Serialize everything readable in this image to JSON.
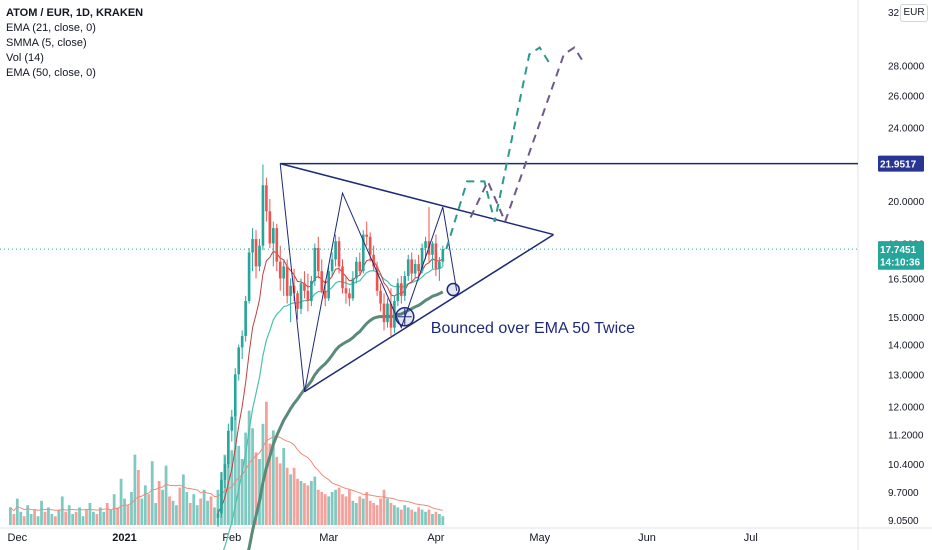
{
  "legend": {
    "title": "ATOM / EUR, 1D, KRAKEN",
    "lines": [
      "EMA (21, close, 0)",
      "SMMA (5, close)",
      "Vol (14)",
      "EMA (50, close, 0)"
    ]
  },
  "currency_badge": "EUR",
  "colors": {
    "up": "#26a69a",
    "down": "#ef5350",
    "vol_up": "#7fc9c0",
    "vol_down": "#f4a09b",
    "ema21": "#4fbfae",
    "smma5": "#c04040",
    "ema50": "#5a8a78",
    "vol_ma": "#f08c7a",
    "drawing": "#1e2a78",
    "projection_teal": "#2b9a8c",
    "projection_purple": "#6c5a8a",
    "price_tag": "#283593"
  },
  "annotation": "Bounced over EMA 50 Twice",
  "chart_data": {
    "type": "candlestick",
    "symbol": "ATOM / EUR",
    "interval": "1D",
    "exchange": "KRAKEN",
    "y_scale": "log",
    "y_ticks": [
      "9.0500",
      "9.7000",
      "10.4000",
      "11.2000",
      "12.0000",
      "13.0000",
      "14.0000",
      "15.0000",
      "16.5000",
      "18.0000",
      "20.0000",
      "22.0000",
      "24.0000",
      "26.0000",
      "28.0000",
      "32.0000"
    ],
    "x_labels": [
      {
        "date": "2020-12-01",
        "label": "Dec"
      },
      {
        "date": "2021-01-01",
        "label": "2021"
      },
      {
        "date": "2021-02-01",
        "label": "Feb"
      },
      {
        "date": "2021-03-01",
        "label": "Mar"
      },
      {
        "date": "2021-04-01",
        "label": "Apr"
      },
      {
        "date": "2021-05-01",
        "label": "May"
      },
      {
        "date": "2021-06-01",
        "label": "Jun"
      },
      {
        "date": "2021-07-01",
        "label": "Jul"
      }
    ],
    "x_range": [
      "2020-11-26",
      "2021-08-01"
    ],
    "price_tags": [
      {
        "label": "21.9517",
        "value": 21.9517,
        "kind": "line"
      },
      {
        "label": "17.7451",
        "value": 17.7451,
        "kind": "last"
      },
      {
        "label": "14:10:36",
        "value": 17.2,
        "kind": "countdown"
      }
    ],
    "current_price": 17.7451,
    "candles_start": "2021-01-28",
    "candles": [
      [
        9.1,
        9.3,
        8.9,
        9.2
      ],
      [
        9.2,
        10.2,
        9.1,
        10.0
      ],
      [
        10.0,
        10.6,
        9.8,
        10.4
      ],
      [
        10.4,
        11.5,
        10.3,
        11.3
      ],
      [
        11.3,
        11.9,
        11.0,
        11.7
      ],
      [
        11.7,
        13.2,
        11.6,
        13.0
      ],
      [
        13.0,
        14.0,
        12.8,
        13.9
      ],
      [
        13.9,
        14.5,
        13.5,
        14.3
      ],
      [
        14.3,
        15.8,
        14.1,
        15.6
      ],
      [
        15.6,
        17.8,
        15.5,
        17.6
      ],
      [
        17.6,
        18.7,
        16.8,
        18.2
      ],
      [
        18.2,
        18.6,
        16.5,
        17.0
      ],
      [
        17.0,
        18.2,
        16.8,
        17.9
      ],
      [
        17.9,
        21.9,
        17.7,
        20.8
      ],
      [
        20.8,
        21.2,
        19.0,
        19.5
      ],
      [
        19.5,
        20.1,
        17.8,
        18.0
      ],
      [
        18.0,
        19.0,
        17.0,
        18.7
      ],
      [
        18.7,
        18.9,
        16.8,
        17.2
      ],
      [
        17.2,
        17.9,
        16.0,
        16.5
      ],
      [
        16.5,
        17.3,
        15.8,
        17.0
      ],
      [
        17.0,
        17.3,
        15.5,
        15.8
      ],
      [
        15.8,
        16.5,
        14.8,
        16.2
      ],
      [
        16.2,
        16.9,
        15.6,
        15.9
      ],
      [
        15.9,
        16.0,
        14.9,
        15.3
      ],
      [
        15.3,
        16.5,
        15.1,
        16.3
      ],
      [
        16.3,
        16.8,
        15.7,
        16.0
      ],
      [
        16.0,
        16.7,
        15.2,
        15.6
      ],
      [
        15.6,
        16.6,
        15.4,
        16.4
      ],
      [
        16.4,
        18.0,
        16.2,
        17.8
      ],
      [
        17.8,
        18.3,
        16.5,
        16.8
      ],
      [
        16.8,
        17.3,
        15.9,
        16.0
      ],
      [
        16.0,
        16.4,
        15.4,
        15.7
      ],
      [
        15.7,
        17.0,
        15.6,
        16.8
      ],
      [
        16.8,
        17.6,
        16.6,
        17.3
      ],
      [
        17.3,
        18.4,
        17.0,
        18.1
      ],
      [
        18.1,
        18.3,
        16.7,
        17.0
      ],
      [
        17.0,
        17.3,
        15.9,
        16.1
      ],
      [
        16.1,
        16.6,
        15.5,
        15.9
      ],
      [
        15.9,
        16.1,
        15.4,
        15.7
      ],
      [
        15.7,
        16.8,
        15.6,
        16.5
      ],
      [
        16.5,
        17.4,
        16.3,
        17.2
      ],
      [
        17.2,
        17.6,
        16.6,
        16.8
      ],
      [
        16.8,
        18.6,
        16.7,
        18.4
      ],
      [
        18.4,
        19.0,
        17.9,
        18.3
      ],
      [
        18.3,
        18.5,
        17.2,
        17.5
      ],
      [
        17.5,
        17.9,
        16.8,
        17.0
      ],
      [
        17.0,
        17.2,
        15.8,
        16.0
      ],
      [
        16.0,
        16.3,
        15.2,
        15.5
      ],
      [
        15.5,
        15.9,
        14.5,
        14.8
      ],
      [
        14.8,
        15.7,
        14.6,
        15.5
      ],
      [
        15.5,
        16.1,
        14.3,
        14.6
      ],
      [
        14.6,
        15.8,
        14.4,
        15.6
      ],
      [
        15.6,
        16.5,
        15.4,
        16.3
      ],
      [
        16.3,
        16.6,
        15.5,
        15.8
      ],
      [
        15.8,
        16.8,
        15.6,
        16.6
      ],
      [
        16.6,
        17.5,
        16.4,
        17.3
      ],
      [
        17.3,
        17.6,
        16.4,
        16.7
      ],
      [
        16.7,
        17.3,
        16.5,
        17.1
      ],
      [
        17.1,
        17.5,
        16.5,
        16.8
      ],
      [
        16.8,
        18.0,
        16.7,
        17.8
      ],
      [
        17.8,
        18.3,
        17.3,
        18.1
      ],
      [
        18.1,
        19.7,
        17.2,
        17.5
      ],
      [
        17.5,
        18.1,
        16.9,
        18.0
      ],
      [
        18.0,
        18.4,
        16.6,
        16.9
      ],
      [
        16.9,
        17.4,
        16.4,
        17.2
      ],
      [
        17.2,
        17.9,
        17.0,
        17.75
      ]
    ],
    "volume": [
      1.6,
      2.4,
      3.2,
      2.8,
      3.4,
      4.9,
      3.6,
      3.0,
      4.2,
      5.2,
      4.4,
      3.3,
      3.0,
      4.6,
      5.6,
      3.7,
      4.3,
      3.1,
      2.8,
      3.5,
      2.6,
      2.3,
      2.6,
      2.1,
      2.0,
      1.9,
      1.8,
      2.0,
      2.2,
      1.6,
      1.5,
      1.4,
      1.3,
      1.5,
      1.6,
      1.7,
      1.4,
      1.3,
      1.6,
      1.1,
      1.0,
      1.3,
      1.2,
      1.5,
      1.1,
      1.0,
      0.9,
      1.2,
      1.6,
      1.2,
      1.0,
      0.9,
      0.8,
      0.7,
      0.9,
      0.8,
      0.7,
      0.6,
      0.8,
      0.7,
      0.6,
      0.7,
      0.5,
      0.6,
      0.5,
      0.4
    ],
    "volume_pre": [
      0.8,
      0.5,
      1.2,
      0.6,
      0.4,
      0.9,
      0.5,
      0.7,
      0.4,
      1.1,
      0.6,
      0.8,
      0.5,
      0.4,
      0.7,
      1.3,
      0.6,
      0.9,
      0.5,
      0.6,
      0.8,
      0.4,
      0.7,
      1.0,
      0.6,
      0.5,
      0.8,
      0.6,
      1.0,
      0.7,
      1.4,
      0.8,
      2.1,
      1.2,
      0.9,
      1.5,
      3.2,
      2.5,
      1.2,
      1.8,
      1.4,
      2.9,
      1.0,
      2.0,
      1.6,
      2.7,
      1.3,
      1.1,
      0.9,
      1.7,
      2.3,
      1.5,
      1.0,
      1.4,
      0.9,
      1.2,
      1.6,
      1.1,
      1.3,
      0.8
    ]
  }
}
